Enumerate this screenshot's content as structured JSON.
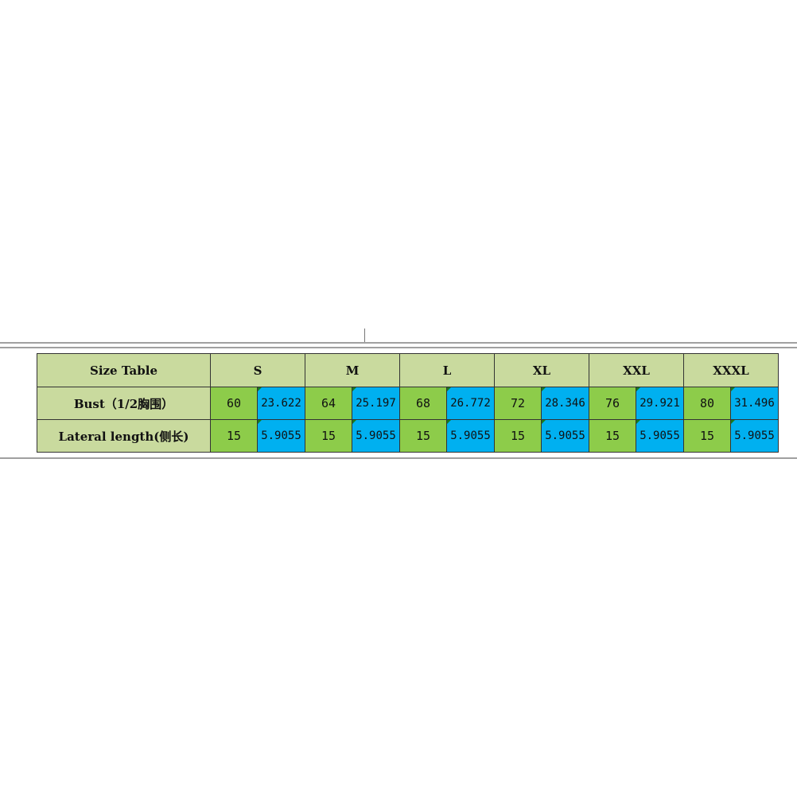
{
  "table": {
    "title": "Size Table",
    "sizes": [
      "S",
      "M",
      "L",
      "XL",
      "XXL",
      "XXXL"
    ],
    "rows": [
      {
        "label": "Bust（1/2胸围）",
        "values": [
          [
            "60",
            "23.622"
          ],
          [
            "64",
            "25.197"
          ],
          [
            "68",
            "26.772"
          ],
          [
            "72",
            "28.346"
          ],
          [
            "76",
            "29.921"
          ],
          [
            "80",
            "31.496"
          ]
        ]
      },
      {
        "label": "Lateral length(侧长)",
        "values": [
          [
            "15",
            "5.9055"
          ],
          [
            "15",
            "5.9055"
          ],
          [
            "15",
            "5.9055"
          ],
          [
            "15",
            "5.9055"
          ],
          [
            "15",
            "5.9055"
          ],
          [
            "15",
            "5.9055"
          ]
        ]
      }
    ]
  },
  "colors": {
    "header": "#c9da9e",
    "cm_cell": "#8dcc4a",
    "inch_cell": "#00b0f0"
  }
}
